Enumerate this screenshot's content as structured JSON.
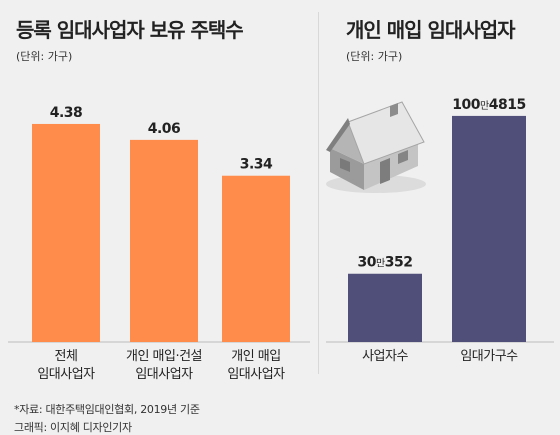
{
  "footer": {
    "source": "*자료: 대한주택임대인협회, 2019년 기준",
    "credit": "그래픽: 이지혜 디자인기자"
  },
  "chart_data": [
    {
      "type": "bar",
      "title": "등록 임대사업자 보유 주택수",
      "unit_label": "(단위: 가구)",
      "categories": [
        [
          "전체",
          "임대사업자"
        ],
        [
          "개인 매입·건설",
          "임대사업자"
        ],
        [
          "개인 매입",
          "임대사업자"
        ]
      ],
      "values": [
        4.38,
        4.06,
        3.34
      ],
      "value_labels": [
        "4.38",
        "4.06",
        "3.34"
      ],
      "ylim": [
        0,
        4.6
      ],
      "bar_color": "#ff8c4a",
      "xlabel": "",
      "ylabel": ""
    },
    {
      "type": "bar",
      "title": "개인 매입 임대사업자",
      "unit_label": "(단위: 가구)",
      "categories": [
        [
          "사업자수"
        ],
        [
          "임대가구수"
        ]
      ],
      "values": [
        303352,
        1004815
      ],
      "value_labels": [
        [
          "30",
          "만",
          "352"
        ],
        [
          "100",
          "만",
          "4815"
        ]
      ],
      "ylim": [
        0,
        1040000
      ],
      "bar_color": "#4f4f7a",
      "xlabel": "",
      "ylabel": ""
    }
  ],
  "icons": {
    "illustration": "house-icon"
  }
}
